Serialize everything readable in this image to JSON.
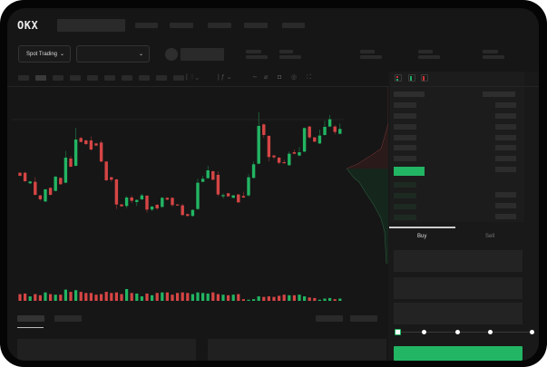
{
  "header": {
    "logo": "OKX"
  },
  "toolbar": {
    "market_selector": "Spot Trading",
    "chevron": "⌄"
  },
  "order_book": {
    "icons": [
      "order-book-both-icon",
      "order-book-bids-icon",
      "order-book-asks-icon"
    ]
  },
  "trade_panel": {
    "tabs": [
      {
        "label": "Buy",
        "active": true
      },
      {
        "label": "Sell",
        "active": false
      }
    ],
    "leverage_slider_value": 0
  },
  "colors": {
    "up": "#22b563",
    "down": "#d64545",
    "background": "#161616",
    "panel": "#1c1c1c"
  },
  "chart_data": {
    "type": "candlestick",
    "title": "",
    "xlabel": "",
    "ylabel": "",
    "ohlc": [
      [
        185,
        187,
        173,
        175
      ],
      [
        185,
        188,
        155,
        157
      ],
      [
        150,
        158,
        148,
        156
      ],
      [
        155,
        170,
        110,
        112
      ],
      [
        110,
        112,
        92,
        97
      ],
      [
        90,
        132,
        88,
        130
      ],
      [
        135,
        137,
        110,
        112
      ],
      [
        125,
        175,
        123,
        172
      ],
      [
        168,
        170,
        145,
        147
      ],
      [
        152,
        257,
        150,
        235
      ],
      [
        232,
        240,
        203,
        205
      ],
      [
        208,
        333,
        206,
        295
      ],
      [
        300,
        304,
        285,
        287
      ],
      [
        292,
        295,
        277,
        280
      ],
      [
        292,
        305,
        258,
        262
      ],
      [
        282,
        284,
        273,
        275
      ],
      [
        285,
        292,
        220,
        222
      ],
      [
        222,
        224,
        158,
        160
      ],
      [
        170,
        172,
        155,
        162
      ],
      [
        163,
        165,
        65,
        80
      ],
      [
        80,
        82,
        72,
        74
      ],
      [
        75,
        108,
        68,
        103
      ],
      [
        103,
        110,
        85,
        92
      ],
      [
        88,
        97,
        75,
        95
      ],
      [
        97,
        115,
        95,
        110
      ],
      [
        109,
        112,
        53,
        63
      ],
      [
        63,
        75,
        58,
        73
      ],
      [
        79,
        81,
        62,
        67
      ],
      [
        72,
        105,
        68,
        102
      ],
      [
        102,
        104,
        94,
        96
      ],
      [
        102,
        104,
        72,
        78
      ],
      [
        80,
        81,
        77,
        78
      ],
      [
        77,
        82,
        43,
        45
      ],
      [
        48,
        50,
        40,
        42
      ],
      [
        42,
        64,
        40,
        62
      ],
      [
        65,
        165,
        62,
        152
      ],
      [
        155,
        175,
        153,
        165
      ],
      [
        167,
        208,
        165,
        193
      ],
      [
        190,
        192,
        160,
        162
      ],
      [
        178,
        190,
        107,
        113
      ],
      [
        107,
        117,
        100,
        111
      ],
      [
        117,
        118,
        105,
        107
      ],
      [
        102,
        112,
        100,
        110
      ],
      [
        113,
        115,
        85,
        87
      ],
      [
        108,
        122,
        101,
        103
      ],
      [
        110,
        180,
        105,
        170
      ],
      [
        168,
        222,
        166,
        213
      ],
      [
        215,
        385,
        213,
        340
      ],
      [
        345,
        348,
        300,
        310
      ],
      [
        307,
        309,
        223,
        237
      ],
      [
        242,
        245,
        230,
        236
      ],
      [
        235,
        237,
        213,
        218
      ],
      [
        220,
        228,
        216,
        218
      ],
      [
        210,
        255,
        208,
        248
      ],
      [
        253,
        262,
        246,
        248
      ],
      [
        242,
        270,
        240,
        253
      ],
      [
        255,
        335,
        253,
        333
      ],
      [
        338,
        340,
        298,
        302
      ],
      [
        302,
        304,
        286,
        288
      ],
      [
        282,
        328,
        280,
        308
      ],
      [
        310,
        357,
        308,
        337
      ],
      [
        338,
        376,
        336,
        362
      ],
      [
        338,
        342,
        312,
        320
      ],
      [
        314,
        348,
        312,
        330
      ]
    ],
    "volume": [
      12,
      13,
      8,
      12,
      10,
      15,
      12,
      11,
      11,
      20,
      16,
      19,
      16,
      14,
      14,
      11,
      12,
      16,
      14,
      15,
      12,
      21,
      14,
      13,
      8,
      13,
      10,
      14,
      15,
      15,
      11,
      14,
      15,
      14,
      12,
      15,
      14,
      13,
      15,
      12,
      11,
      10,
      11,
      12,
      3,
      2,
      3,
      8,
      7,
      8,
      7,
      9,
      11,
      10,
      10,
      11,
      8,
      6,
      5,
      2,
      4,
      5,
      3,
      4
    ]
  }
}
